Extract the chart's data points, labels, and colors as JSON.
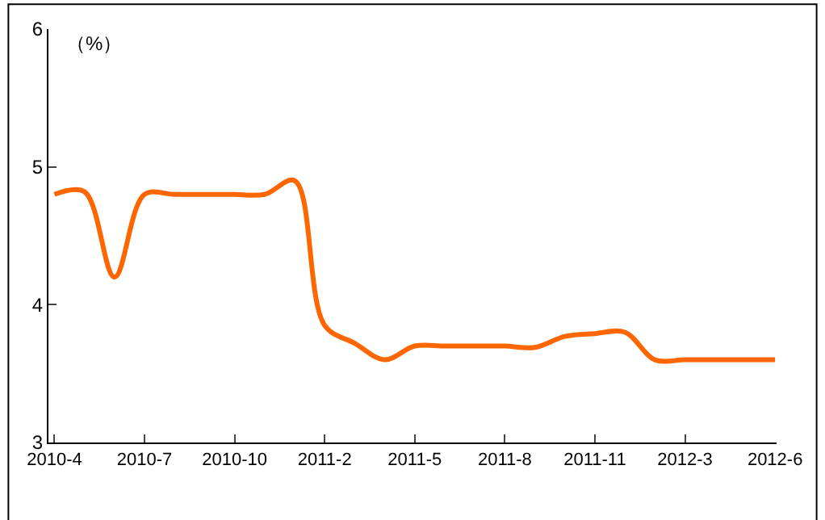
{
  "chart_data": {
    "type": "line",
    "ylabel": "（%）",
    "categories": [
      "2010-4",
      null,
      null,
      "2010-7",
      null,
      null,
      "2010-10",
      null,
      null,
      "2011-2",
      null,
      null,
      "2011-5",
      null,
      null,
      "2011-8",
      null,
      null,
      "2011-11",
      null,
      null,
      "2012-3",
      null,
      null,
      "2012-6"
    ],
    "series": [
      {
        "color": "#ff6600",
        "values": [
          4.8,
          4.82,
          4.2,
          4.8,
          4.8,
          4.8,
          4.8,
          4.8,
          4.9,
          3.85,
          3.72,
          3.6,
          3.7,
          3.7,
          3.7,
          3.7,
          3.69,
          3.77,
          3.79,
          3.8,
          3.6,
          3.6,
          3.6,
          3.6,
          3.6
        ]
      }
    ],
    "ylim": [
      3,
      6
    ],
    "yticks": [
      3,
      4,
      5,
      6
    ],
    "marker": "none",
    "line_style": "solid"
  }
}
